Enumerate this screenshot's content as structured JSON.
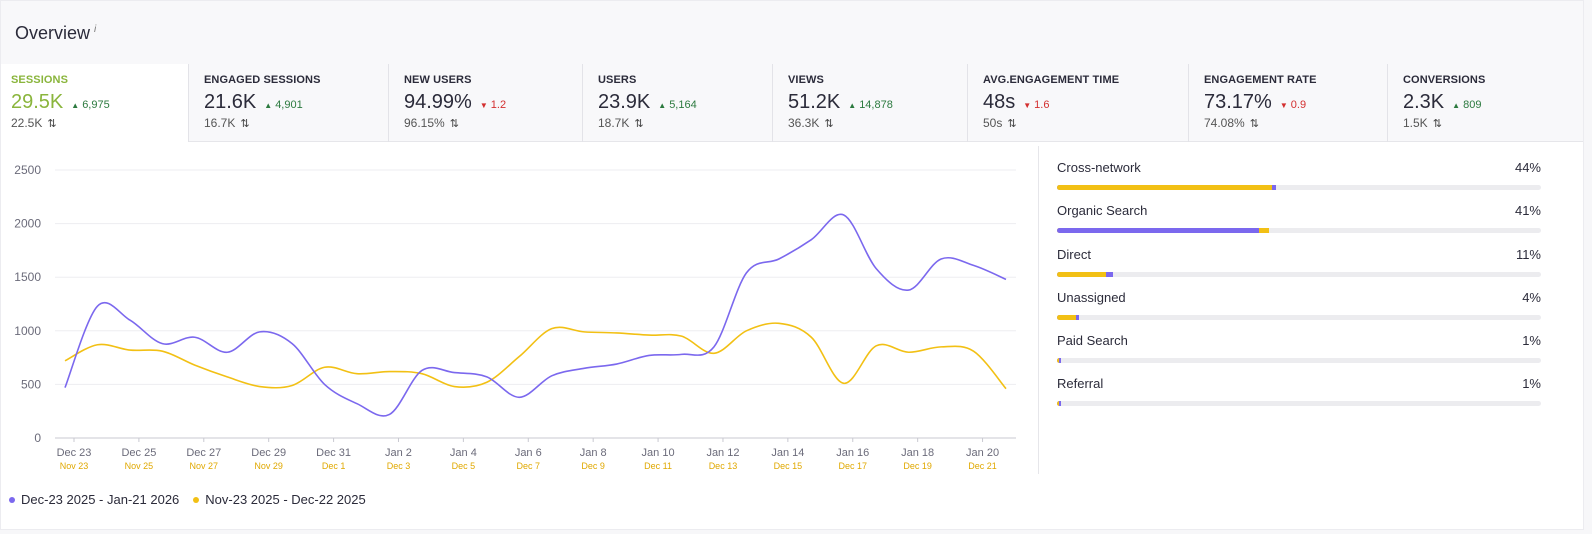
{
  "header": {
    "title": "Overview",
    "info": "i"
  },
  "colors": {
    "current": "#7b68ee",
    "previous": "#f2c014",
    "active_metric": "#8ab53c",
    "up": "#2c7a3f",
    "down": "#d32f2f"
  },
  "metrics": [
    {
      "label": "SESSIONS",
      "value": "29.5K",
      "delta": "6,975",
      "direction": "up",
      "prev": "22.5K",
      "swap": "⇅",
      "active": true
    },
    {
      "label": "ENGAGED SESSIONS",
      "value": "21.6K",
      "delta": "4,901",
      "direction": "up",
      "prev": "16.7K",
      "swap": "⇅"
    },
    {
      "label": "NEW USERS",
      "value": "94.99%",
      "delta": "1.2",
      "direction": "down",
      "prev": "96.15%",
      "swap": "⇅"
    },
    {
      "label": "USERS",
      "value": "23.9K",
      "delta": "5,164",
      "direction": "up",
      "prev": "18.7K",
      "swap": "⇅"
    },
    {
      "label": "VIEWS",
      "value": "51.2K",
      "delta": "14,878",
      "direction": "up",
      "prev": "36.3K",
      "swap": "⇅"
    },
    {
      "label": "AVG.ENGAGEMENT TIME",
      "value": "48s",
      "delta": "1.6",
      "direction": "down",
      "prev": "50s",
      "swap": "⇅"
    },
    {
      "label": "ENGAGEMENT RATE",
      "value": "73.17%",
      "delta": "0.9",
      "direction": "down",
      "prev": "74.08%",
      "swap": "⇅"
    },
    {
      "label": "CONVERSIONS",
      "value": "2.3K",
      "delta": "809",
      "direction": "up",
      "prev": "1.5K",
      "swap": "⇅"
    }
  ],
  "chart_data": {
    "type": "line",
    "ylim": [
      0,
      2500
    ],
    "yticks": [
      "0",
      "500",
      "1000",
      "1500",
      "2000",
      "2500"
    ],
    "x_tick_labels": [
      "Dec 23",
      "Dec 25",
      "Dec 27",
      "Dec 29",
      "Dec 31",
      "Jan 2",
      "Jan 4",
      "Jan 6",
      "Jan 8",
      "Jan 10",
      "Jan 12",
      "Jan 14",
      "Jan 16",
      "Jan 18",
      "Jan 20"
    ],
    "x_tick_labels_previous": [
      "Nov 23",
      "Nov 25",
      "Nov 27",
      "Nov 29",
      "Dec 1",
      "Dec 3",
      "Dec 5",
      "Dec 7",
      "Dec 9",
      "Dec 11",
      "Dec 13",
      "Dec 15",
      "Dec 17",
      "Dec 19",
      "Dec 21"
    ],
    "series": [
      {
        "name": "Dec-23 2025 - Jan-21 2026",
        "color": "#7b68ee",
        "values": [
          470,
          1230,
          1100,
          880,
          940,
          800,
          990,
          880,
          500,
          320,
          220,
          630,
          610,
          570,
          380,
          580,
          650,
          690,
          770,
          780,
          850,
          1540,
          1670,
          1850,
          2080,
          1580,
          1380,
          1670,
          1610,
          1480
        ]
      },
      {
        "name": "Nov-23 2025 - Dec-22 2025",
        "color": "#f2c014",
        "values": [
          720,
          870,
          820,
          810,
          680,
          570,
          480,
          490,
          660,
          600,
          620,
          600,
          480,
          520,
          760,
          1020,
          990,
          980,
          960,
          950,
          790,
          1000,
          1070,
          940,
          510,
          860,
          800,
          850,
          810,
          460
        ]
      }
    ]
  },
  "sources": [
    {
      "name": "Cross-network",
      "pct": "44%",
      "current": 44,
      "previous": 43.5
    },
    {
      "name": "Organic Search",
      "pct": "41%",
      "current": 41,
      "previous": 42.5
    },
    {
      "name": "Direct",
      "pct": "11%",
      "current": 11,
      "previous": 10
    },
    {
      "name": "Unassigned",
      "pct": "4%",
      "current": 3.8,
      "previous": 4
    },
    {
      "name": "Paid Search",
      "pct": "1%",
      "current": 0.5,
      "previous": 0.5
    },
    {
      "name": "Referral",
      "pct": "1%",
      "current": 0.5,
      "previous": 0.5
    }
  ],
  "legend": [
    {
      "label": "Dec-23 2025 - Jan-21 2026",
      "color": "#7b68ee"
    },
    {
      "label": "Nov-23 2025 - Dec-22 2025",
      "color": "#f2c014"
    }
  ]
}
